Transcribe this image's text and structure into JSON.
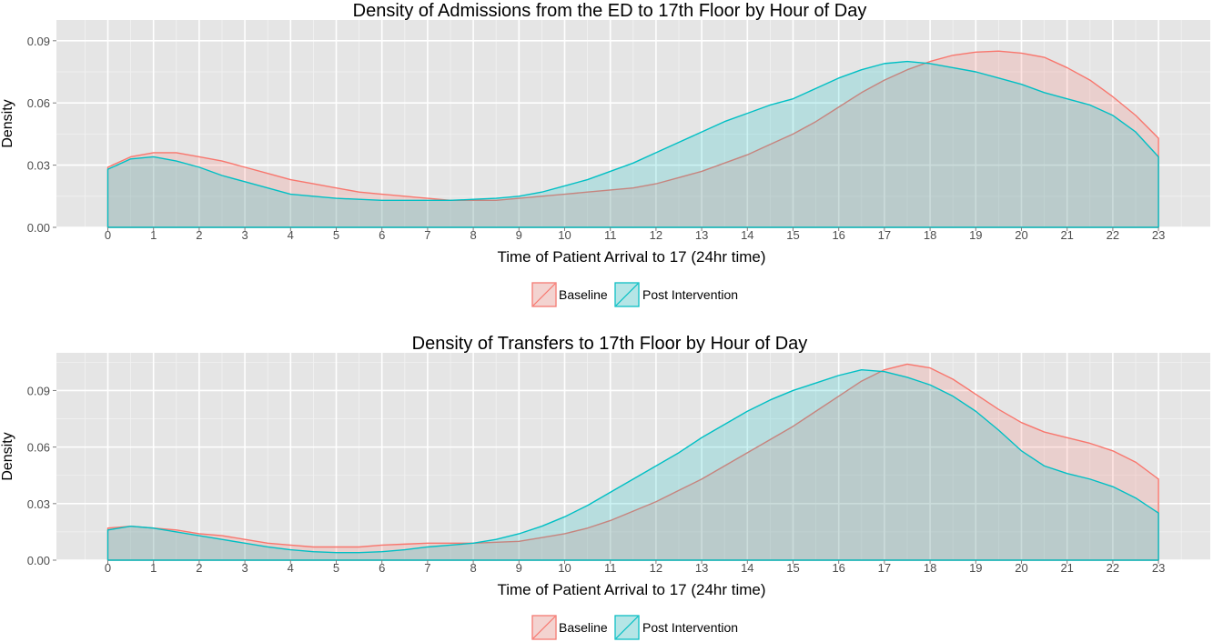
{
  "chart_data": [
    {
      "type": "area",
      "title": "Density of Admissions from the ED to 17th Floor by Hour of Day",
      "xlabel": "Time of Patient Arrival to 17 (24hr time)",
      "ylabel": "Density",
      "xlim": [
        0,
        23
      ],
      "ylim": [
        0,
        0.1
      ],
      "x_ticks": [
        0,
        1,
        2,
        3,
        4,
        5,
        6,
        7,
        8,
        9,
        10,
        11,
        12,
        13,
        14,
        15,
        16,
        17,
        18,
        19,
        20,
        21,
        22,
        23
      ],
      "y_ticks": [
        "0.00",
        "0.03",
        "0.06",
        "0.09"
      ],
      "grid": true,
      "legend": "bottom",
      "x": [
        0,
        0.5,
        1,
        1.5,
        2,
        2.5,
        3,
        3.5,
        4,
        4.5,
        5,
        5.5,
        6,
        6.5,
        7,
        7.5,
        8,
        8.5,
        9,
        9.5,
        10,
        10.5,
        11,
        11.5,
        12,
        12.5,
        13,
        13.5,
        14,
        14.5,
        15,
        15.5,
        16,
        16.5,
        17,
        17.5,
        18,
        18.5,
        19,
        19.5,
        20,
        20.5,
        21,
        21.5,
        22,
        22.5,
        23
      ],
      "series": [
        {
          "name": "Baseline",
          "color": "#F8766D",
          "values": [
            0.029,
            0.034,
            0.036,
            0.036,
            0.034,
            0.032,
            0.029,
            0.026,
            0.023,
            0.021,
            0.019,
            0.017,
            0.016,
            0.015,
            0.014,
            0.013,
            0.013,
            0.013,
            0.014,
            0.015,
            0.016,
            0.017,
            0.018,
            0.019,
            0.021,
            0.024,
            0.027,
            0.031,
            0.035,
            0.04,
            0.045,
            0.051,
            0.058,
            0.065,
            0.071,
            0.076,
            0.08,
            0.083,
            0.0845,
            0.085,
            0.084,
            0.082,
            0.077,
            0.071,
            0.063,
            0.054,
            0.043
          ]
        },
        {
          "name": "Post Intervention",
          "color": "#00BFC4",
          "values": [
            0.028,
            0.033,
            0.034,
            0.032,
            0.029,
            0.025,
            0.022,
            0.019,
            0.016,
            0.015,
            0.014,
            0.0135,
            0.013,
            0.013,
            0.013,
            0.013,
            0.0135,
            0.014,
            0.015,
            0.017,
            0.02,
            0.023,
            0.027,
            0.031,
            0.036,
            0.041,
            0.046,
            0.051,
            0.055,
            0.059,
            0.062,
            0.067,
            0.072,
            0.076,
            0.079,
            0.08,
            0.079,
            0.077,
            0.075,
            0.072,
            0.069,
            0.065,
            0.062,
            0.059,
            0.054,
            0.046,
            0.034
          ]
        }
      ]
    },
    {
      "type": "area",
      "title": "Density of Transfers to 17th Floor by Hour of Day",
      "xlabel": "Time of Patient Arrival to 17 (24hr time)",
      "ylabel": "Density",
      "xlim": [
        0,
        23
      ],
      "ylim": [
        0,
        0.11
      ],
      "x_ticks": [
        0,
        1,
        2,
        3,
        4,
        5,
        6,
        7,
        8,
        9,
        10,
        11,
        12,
        13,
        14,
        15,
        16,
        17,
        18,
        19,
        20,
        21,
        22,
        23
      ],
      "y_ticks": [
        "0.00",
        "0.03",
        "0.06",
        "0.09"
      ],
      "grid": true,
      "legend": "bottom",
      "x": [
        0,
        0.5,
        1,
        1.5,
        2,
        2.5,
        3,
        3.5,
        4,
        4.5,
        5,
        5.5,
        6,
        6.5,
        7,
        7.5,
        8,
        8.5,
        9,
        9.5,
        10,
        10.5,
        11,
        11.5,
        12,
        12.5,
        13,
        13.5,
        14,
        14.5,
        15,
        15.5,
        16,
        16.5,
        17,
        17.5,
        18,
        18.5,
        19,
        19.5,
        20,
        20.5,
        21,
        21.5,
        22,
        22.5,
        23
      ],
      "series": [
        {
          "name": "Baseline",
          "color": "#F8766D",
          "values": [
            0.017,
            0.018,
            0.017,
            0.016,
            0.014,
            0.013,
            0.011,
            0.009,
            0.008,
            0.007,
            0.007,
            0.007,
            0.008,
            0.0085,
            0.009,
            0.009,
            0.009,
            0.0095,
            0.01,
            0.012,
            0.014,
            0.017,
            0.021,
            0.026,
            0.031,
            0.037,
            0.043,
            0.05,
            0.057,
            0.064,
            0.071,
            0.079,
            0.087,
            0.095,
            0.101,
            0.104,
            0.102,
            0.096,
            0.088,
            0.08,
            0.073,
            0.068,
            0.065,
            0.062,
            0.058,
            0.052,
            0.043
          ]
        },
        {
          "name": "Post Intervention",
          "color": "#00BFC4",
          "values": [
            0.016,
            0.018,
            0.017,
            0.015,
            0.013,
            0.011,
            0.009,
            0.007,
            0.0055,
            0.0045,
            0.004,
            0.004,
            0.0045,
            0.0055,
            0.007,
            0.008,
            0.009,
            0.011,
            0.014,
            0.018,
            0.023,
            0.029,
            0.036,
            0.043,
            0.05,
            0.057,
            0.065,
            0.072,
            0.079,
            0.085,
            0.09,
            0.094,
            0.098,
            0.101,
            0.1,
            0.097,
            0.093,
            0.087,
            0.079,
            0.069,
            0.058,
            0.05,
            0.046,
            0.043,
            0.039,
            0.033,
            0.025
          ]
        }
      ]
    }
  ]
}
